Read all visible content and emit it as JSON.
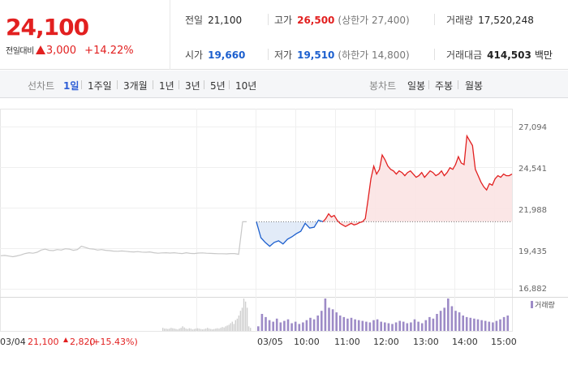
{
  "summary": {
    "current_price": "24,100",
    "change_label": "전일대비",
    "change_amount": "3,000",
    "change_rate": "+14.22%",
    "prev_close_label": "전일",
    "prev_close": "21,100",
    "open_label": "시가",
    "open": "19,660",
    "high_label": "고가",
    "high": "26,500",
    "upper_limit": "(상한가 27,400)",
    "low_label": "저가",
    "low": "19,510",
    "lower_limit": "(하한가 14,800)",
    "volume_label": "거래량",
    "volume": "17,520,248",
    "value_label": "거래대금",
    "value": "414,503",
    "value_unit": "백만"
  },
  "line_tabs": {
    "label": "선차트",
    "items": [
      "1일",
      "1주일",
      "3개월",
      "1년",
      "3년",
      "5년",
      "10년"
    ],
    "active": "1일"
  },
  "candle_tabs": {
    "label": "봉차트",
    "items": [
      "일봉",
      "주봉",
      "월봉"
    ]
  },
  "colors": {
    "up": "#e22020",
    "down": "#1c5fce",
    "accent": "#2f5fd6",
    "volume": "#9d8bc7"
  },
  "chart_data": {
    "type": "line",
    "price_ticks": [
      "27,094",
      "24,541",
      "21,988",
      "19,435",
      "16,882"
    ],
    "ylim": [
      16882,
      27094
    ],
    "reference_price": 21100,
    "time_labels": [
      "03/04",
      "03/05",
      "10:00",
      "11:00",
      "12:00",
      "13:00",
      "14:00",
      "15:00"
    ],
    "volume_legend": "거래량",
    "prev_day": {
      "date": "03/04",
      "close": "21,100",
      "change": "2,820",
      "rate": "(+15.43%)",
      "series": [
        18960,
        18980,
        18940,
        18900,
        18950,
        19010,
        19100,
        19150,
        19120,
        19180,
        19320,
        19380,
        19300,
        19280,
        19350,
        19320,
        19400,
        19380,
        19300,
        19350,
        19560,
        19480,
        19400,
        19380,
        19320,
        19350,
        19300,
        19280,
        19250,
        19240,
        19260,
        19240,
        19210,
        19200,
        19220,
        19190,
        19180,
        19200,
        19150,
        19120,
        19140,
        19150,
        19130,
        19150,
        19120,
        19100,
        19150,
        19110,
        19100,
        19130,
        19140,
        19120,
        19110,
        19100,
        19090,
        19090,
        19080,
        19100,
        19100,
        19050,
        21100,
        21100
      ]
    },
    "today": {
      "date": "03/05",
      "below": [
        21100,
        20100,
        19800,
        19560,
        19800,
        19900,
        19700,
        20000,
        20150,
        20350,
        20500,
        21000,
        20700,
        20750,
        21200,
        21100
      ],
      "above": [
        21100,
        21300,
        21600,
        21400,
        21500,
        21200,
        21000,
        20900,
        20800,
        20900,
        21000,
        20900,
        20950,
        21050,
        21100,
        21300,
        22500,
        23800,
        24600,
        24100,
        24400,
        25300,
        25000,
        24600,
        24400,
        24300,
        24100,
        24300,
        24200,
        24000,
        24200,
        24300,
        24100,
        23900,
        24000,
        24200,
        23900,
        24100,
        24300,
        24200,
        24000,
        24100,
        24300,
        24000,
        24200,
        24500,
        24400,
        24700,
        25200,
        24800,
        24700,
        26500,
        26200,
        25900,
        24400,
        24000,
        23600,
        23300,
        23100,
        23500,
        23400,
        23800,
        24000,
        23900,
        24100,
        24000,
        24000,
        24100
      ],
      "volumes": [
        60,
        220,
        180,
        140,
        120,
        160,
        110,
        130,
        150,
        100,
        120,
        90,
        110,
        140,
        170,
        150,
        200,
        260,
        420,
        300,
        280,
        240,
        200,
        180,
        160,
        170,
        150,
        140,
        130,
        120,
        110,
        140,
        150,
        120,
        110,
        100,
        90,
        110,
        130,
        120,
        100,
        110,
        150,
        120,
        100,
        140,
        180,
        160,
        220,
        260,
        300,
        420,
        320,
        260,
        240,
        200,
        180,
        170,
        160,
        150,
        140,
        130,
        120,
        110,
        130,
        150,
        180,
        200
      ]
    },
    "prev_volumes": [
      40,
      30,
      30,
      25,
      30,
      40,
      35,
      30,
      25,
      20,
      30,
      40,
      60,
      45,
      30,
      25,
      35,
      30,
      20,
      25,
      30,
      35,
      30,
      25,
      20,
      25,
      30,
      40,
      30,
      25,
      20,
      25,
      30,
      35,
      30,
      40,
      50,
      45,
      60,
      70,
      80,
      100,
      120,
      90,
      140,
      160,
      200,
      260,
      300,
      420,
      380,
      300,
      60,
      40
    ]
  }
}
